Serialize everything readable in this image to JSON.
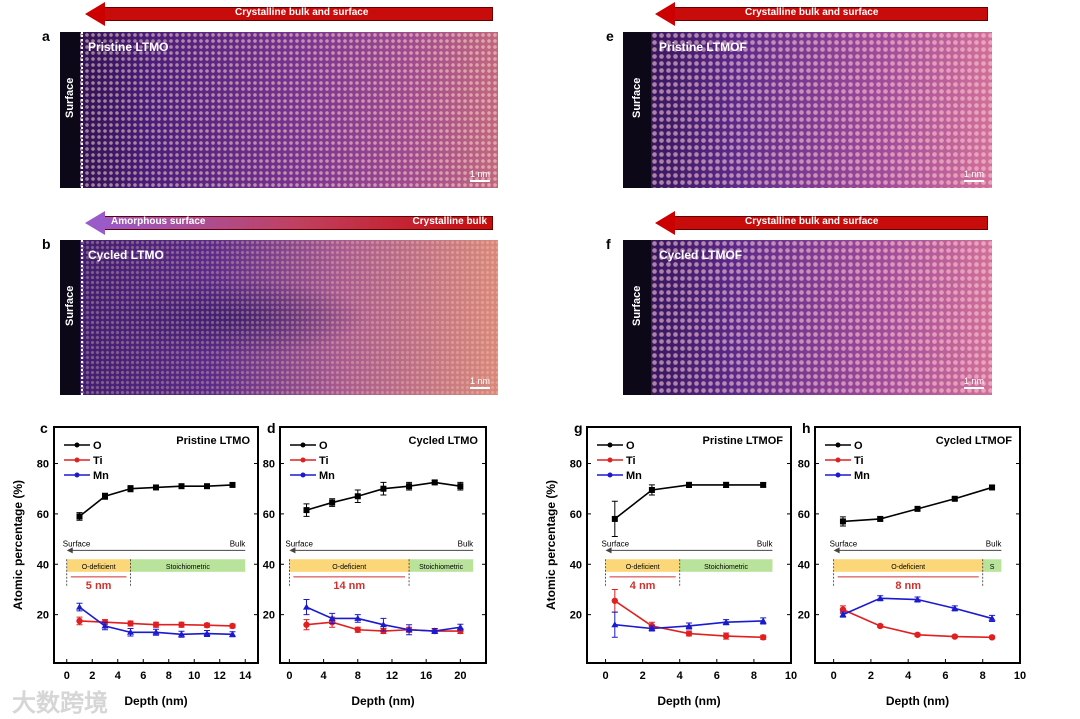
{
  "panels": {
    "a": {
      "letter": "a",
      "title": "Pristine LTMO",
      "arrow": "Crystalline bulk and surface",
      "surface": "Surface",
      "scale": "1 nm"
    },
    "b": {
      "letter": "b",
      "title": "Cycled LTMO",
      "arrow_left": "Amorphous surface",
      "arrow_right": "Crystalline bulk",
      "surface": "Surface",
      "scale": "1 nm"
    },
    "e": {
      "letter": "e",
      "title": "Pristine LTMOF",
      "arrow": "Crystalline bulk and surface",
      "surface": "Surface",
      "scale": "1 nm"
    },
    "f": {
      "letter": "f",
      "title": "Cycled LTMOF",
      "arrow": "Crystalline bulk and surface",
      "surface": "Surface",
      "scale": "1 nm"
    }
  },
  "colors": {
    "O": "#000000",
    "Ti": "#e02020",
    "Mn": "#1a1ad0",
    "odef": "#fcd77a",
    "stoich": "#b9e39a",
    "arrow_red": "#c80c0c",
    "arrow_purple": "#9a5ac8"
  },
  "watermark": "大数跨境",
  "chart_data": [
    {
      "letter": "c",
      "type": "line",
      "title": "Pristine LTMO",
      "xlabel": "Depth (nm)",
      "ylabel": "Atomic percentage (%)",
      "xlim": [
        -1,
        15
      ],
      "ylim": [
        0.8,
        94.5
      ],
      "xticks": [
        0,
        2,
        4,
        6,
        8,
        10,
        12,
        14
      ],
      "yticks": [
        20,
        40,
        60,
        80
      ],
      "x": [
        1,
        3,
        5,
        7,
        9,
        11,
        13
      ],
      "series": [
        {
          "name": "O",
          "values": [
            59,
            67,
            70,
            70.5,
            71,
            71,
            71.5
          ],
          "err": [
            1.5,
            1.2,
            1.2,
            0.8,
            0.8,
            0.8,
            0.8
          ]
        },
        {
          "name": "Ti",
          "values": [
            17.5,
            17,
            16.5,
            16,
            16,
            15.8,
            15.5
          ],
          "err": [
            1.5,
            1,
            1,
            1,
            1,
            0.8,
            0.8
          ]
        },
        {
          "name": "Mn",
          "values": [
            23,
            15.5,
            13,
            13,
            12.2,
            12.5,
            12.2
          ],
          "err": [
            1.5,
            1.5,
            1.5,
            1.2,
            1.2,
            1.2,
            1
          ]
        }
      ],
      "annotation": {
        "left": "Surface",
        "right": "Bulk",
        "zone1": "O-deficient",
        "zone2": "Stoichiometric",
        "zone1_range": [
          0,
          5
        ],
        "zone2_range": [
          5,
          14
        ],
        "depth_label": "5 nm"
      }
    },
    {
      "letter": "d",
      "type": "line",
      "title": "Cycled LTMO",
      "xlabel": "Depth (nm)",
      "ylabel": "",
      "xlim": [
        -1.1,
        23
      ],
      "ylim": [
        0.8,
        94.5
      ],
      "xticks": [
        0,
        4,
        8,
        12,
        16,
        20
      ],
      "yticks": [
        20,
        40,
        60,
        80
      ],
      "x": [
        2,
        5,
        8,
        11,
        14,
        17,
        20
      ],
      "series": [
        {
          "name": "O",
          "values": [
            61.5,
            64.5,
            67,
            70,
            71,
            72.5,
            71
          ],
          "err": [
            2.5,
            1.5,
            2.5,
            2.5,
            1.5,
            0.8,
            1.5
          ]
        },
        {
          "name": "Ti",
          "values": [
            16,
            17,
            14,
            13.5,
            14,
            13.5,
            13.5
          ],
          "err": [
            2,
            2,
            1,
            1,
            1,
            1,
            1
          ]
        },
        {
          "name": "Mn",
          "values": [
            23,
            18.5,
            18.5,
            16,
            14,
            13.5,
            15
          ],
          "err": [
            3,
            2,
            1.5,
            2.5,
            2,
            1,
            1.2
          ]
        }
      ],
      "annotation": {
        "left": "Surface",
        "right": "Bulk",
        "zone1": "O-deficient",
        "zone2": "Stoichiometric",
        "zone1_range": [
          0,
          14
        ],
        "zone2_range": [
          14,
          21.5
        ],
        "depth_label": "14 nm"
      }
    },
    {
      "letter": "g",
      "type": "line",
      "title": "Pristine LTMOF",
      "xlabel": "Depth (nm)",
      "ylabel": "Atomic percentage (%)",
      "xlim": [
        -1,
        10
      ],
      "ylim": [
        0.8,
        94.5
      ],
      "xticks": [
        0,
        2,
        4,
        6,
        8,
        10
      ],
      "yticks": [
        20,
        40,
        60,
        80
      ],
      "x": [
        0.5,
        2.5,
        4.5,
        6.5,
        8.5
      ],
      "series": [
        {
          "name": "O",
          "values": [
            58,
            69.5,
            71.5,
            71.5,
            71.5
          ],
          "err": [
            7,
            2,
            1,
            1,
            0.8
          ]
        },
        {
          "name": "Ti",
          "values": [
            25.5,
            15.5,
            12.5,
            11.5,
            11
          ],
          "err": [
            4.5,
            1.5,
            1,
            1.2,
            0.8
          ]
        },
        {
          "name": "Mn",
          "values": [
            16,
            14.5,
            15.5,
            17,
            17.5
          ],
          "err": [
            5,
            1,
            1.2,
            1,
            1.2
          ]
        }
      ],
      "annotation": {
        "left": "Surface",
        "right": "Bulk",
        "zone1": "O-deficient",
        "zone2": "Stoichiometric",
        "zone1_range": [
          0,
          4
        ],
        "zone2_range": [
          4,
          9
        ],
        "depth_label": "4 nm"
      }
    },
    {
      "letter": "h",
      "type": "line",
      "title": "Cycled LTMOF",
      "xlabel": "Depth (nm)",
      "ylabel": "",
      "xlim": [
        -1,
        10
      ],
      "ylim": [
        0.8,
        94.5
      ],
      "xticks": [
        0,
        2,
        4,
        6,
        8,
        10
      ],
      "yticks": [
        20,
        40,
        60,
        80
      ],
      "x": [
        0.5,
        2.5,
        4.5,
        6.5,
        8.5
      ],
      "series": [
        {
          "name": "O",
          "values": [
            57,
            58,
            62,
            66,
            70.5
          ],
          "err": [
            1.8,
            0.8,
            0.6,
            0.6,
            0.6
          ]
        },
        {
          "name": "Ti",
          "values": [
            22,
            15.5,
            12,
            11.3,
            11
          ],
          "err": [
            1.5,
            0.6,
            0.6,
            0.5,
            0.5
          ]
        },
        {
          "name": "Mn",
          "values": [
            20,
            26.5,
            26,
            22.5,
            18.5
          ],
          "err": [
            1,
            1,
            1,
            1,
            1.2
          ]
        }
      ],
      "annotation": {
        "left": "Surface",
        "right": "Bulk",
        "zone1": "O-deficient",
        "zone2": "S",
        "zone1_range": [
          0,
          8
        ],
        "zone2_range": [
          8,
          9
        ],
        "depth_label": "8 nm"
      }
    }
  ]
}
